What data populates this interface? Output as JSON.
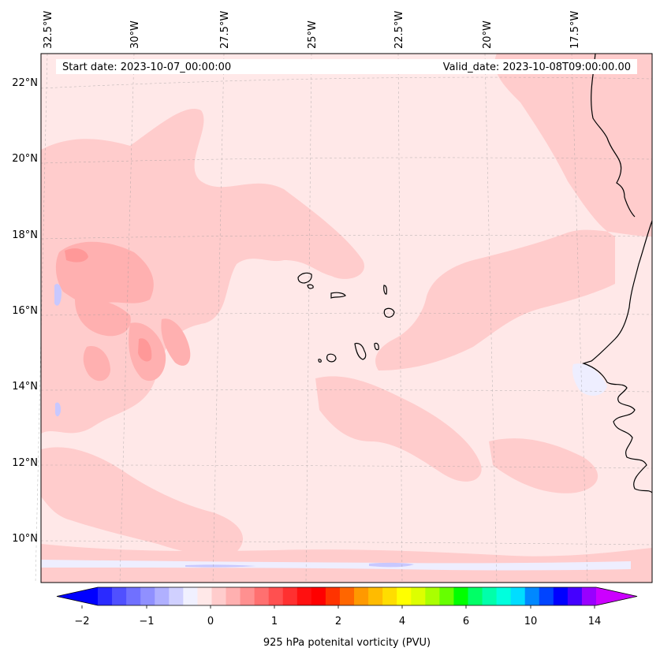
{
  "header": {
    "start_date": "Start date: 2023-10-07_00:00:00",
    "valid_date": "Valid_date: 2023-10-08T09:00:00.00"
  },
  "longitude_labels": [
    "32.5°W",
    "30°W",
    "27.5°W",
    "25°W",
    "22.5°W",
    "20°W",
    "17.5°W"
  ],
  "latitude_labels": [
    "22°N",
    "20°N",
    "18°N",
    "16°N",
    "14°N",
    "12°N",
    "10°N"
  ],
  "colorbar": {
    "title": "925 hPa potenital vorticity (PVU)",
    "tick_labels": [
      "−2",
      "−1",
      "0",
      "1",
      "2",
      "4",
      "6",
      "10",
      "14"
    ],
    "colors": [
      "#0000ff",
      "#2a2aff",
      "#5050ff",
      "#7070ff",
      "#9090ff",
      "#b0b0ff",
      "#d0d0ff",
      "#f0f0ff",
      "#ffe8e8",
      "#ffcccc",
      "#ffb0b0",
      "#ff9090",
      "#ff7070",
      "#ff5050",
      "#ff3030",
      "#ff1010",
      "#ff0000",
      "#ff3300",
      "#ff6600",
      "#ff9900",
      "#ffbb00",
      "#ffdd00",
      "#ffff00",
      "#ddff00",
      "#aaff00",
      "#66ff00",
      "#00ff00",
      "#00ff66",
      "#00ffaa",
      "#00ffdd",
      "#00ddff",
      "#0088ff",
      "#0044ff",
      "#0000ff",
      "#4400ff",
      "#9900ff",
      "#cc00ff"
    ]
  },
  "map_colors": {
    "background": "#ffe8e8",
    "light_red": "#ffcccc",
    "medium_red": "#ffb0b0",
    "strong_red": "#ff9898",
    "light_blue": "#eeeeff",
    "medium_blue": "#c8c8ff"
  }
}
